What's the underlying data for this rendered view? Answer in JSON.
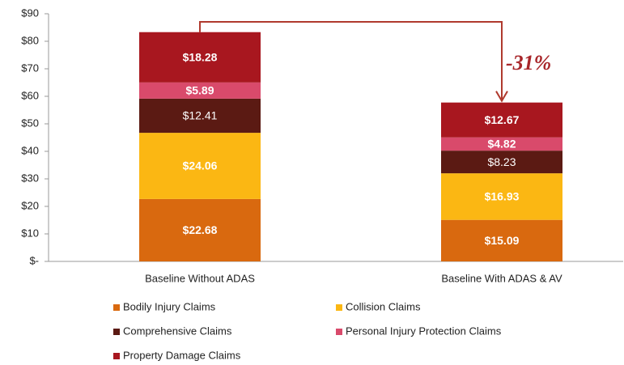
{
  "chart_data": {
    "type": "stacked_bar",
    "categories": [
      "Baseline Without ADAS",
      "Baseline With ADAS & AV"
    ],
    "series": [
      {
        "name": "Bodily Injury Claims",
        "color": "#d9690f",
        "values": [
          22.68,
          15.09
        ],
        "value_labels": [
          "$22.68",
          "$15.09"
        ]
      },
      {
        "name": "Collision Claims",
        "color": "#fbb713",
        "values": [
          24.06,
          16.93
        ],
        "value_labels": [
          "$24.06",
          "$16.93"
        ]
      },
      {
        "name": "Comprehensive Claims",
        "color": "#5b1a13",
        "values": [
          12.41,
          8.23
        ],
        "value_labels": [
          "$12.41",
          "$8.23"
        ]
      },
      {
        "name": "Personal Injury Protection Claims",
        "color": "#d94a6b",
        "values": [
          5.89,
          4.82
        ],
        "value_labels": [
          "$5.89",
          "$4.82"
        ]
      },
      {
        "name": "Property Damage Claims",
        "color": "#a8171f",
        "values": [
          18.28,
          12.67
        ],
        "value_labels": [
          "$18.28",
          "$12.67"
        ]
      }
    ],
    "ylim": [
      0,
      90
    ],
    "yticks": [
      {
        "value": 0,
        "label": "$-"
      },
      {
        "value": 10,
        "label": "$10"
      },
      {
        "value": 20,
        "label": "$20"
      },
      {
        "value": 30,
        "label": "$30"
      },
      {
        "value": 40,
        "label": "$40"
      },
      {
        "value": 50,
        "label": "$50"
      },
      {
        "value": 60,
        "label": "$60"
      },
      {
        "value": 70,
        "label": "$70"
      },
      {
        "value": 80,
        "label": "$80"
      },
      {
        "value": 90,
        "label": "$90"
      }
    ],
    "annotations": [
      "-31%"
    ],
    "grid": false
  }
}
